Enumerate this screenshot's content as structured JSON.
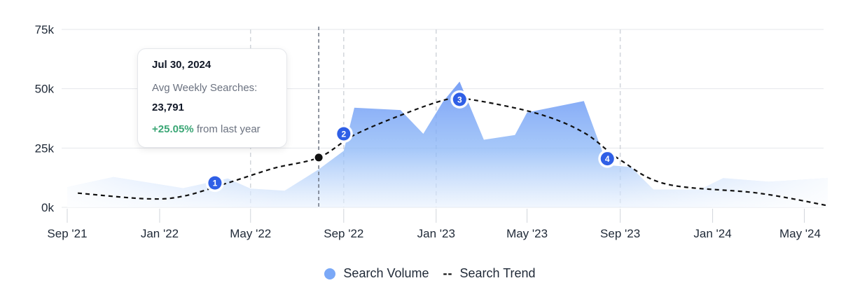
{
  "chart_data": {
    "type": "area",
    "title": "",
    "xlabel": "",
    "ylabel": "",
    "x_ticks": [
      "Sep '21",
      "Jan  '22",
      "May '22",
      "Sep '22",
      "Jan '23",
      "May '23",
      "Sep '23",
      "Jan '24",
      "May '24"
    ],
    "y_ticks": [
      "0k",
      "25k",
      "50k",
      "75k"
    ],
    "ylim": [
      0,
      75000
    ],
    "grid": true,
    "legend_position": "bottom-center",
    "series": [
      {
        "name": "Search Volume",
        "kind": "area",
        "color": "#7aa8f7",
        "points": [
          {
            "x": "2021-09-01",
            "y": 8500
          },
          {
            "x": "2021-11-01",
            "y": 12800
          },
          {
            "x": "2022-02-01",
            "y": 8100
          },
          {
            "x": "2022-04-01",
            "y": 12200
          },
          {
            "x": "2022-05-01",
            "y": 7900
          },
          {
            "x": "2022-06-15",
            "y": 7000
          },
          {
            "x": "2022-07-30",
            "y": 16000
          },
          {
            "x": "2022-09-01",
            "y": 23800
          },
          {
            "x": "2022-09-15",
            "y": 42000
          },
          {
            "x": "2022-11-15",
            "y": 41000
          },
          {
            "x": "2022-12-15",
            "y": 31000
          },
          {
            "x": "2023-01-10",
            "y": 44500
          },
          {
            "x": "2023-02-01",
            "y": 53000
          },
          {
            "x": "2023-03-05",
            "y": 28500
          },
          {
            "x": "2023-04-15",
            "y": 30500
          },
          {
            "x": "2023-05-01",
            "y": 40000
          },
          {
            "x": "2023-07-15",
            "y": 44800
          },
          {
            "x": "2023-08-15",
            "y": 17800
          },
          {
            "x": "2023-09-15",
            "y": 17000
          },
          {
            "x": "2023-10-15",
            "y": 7500
          },
          {
            "x": "2023-12-15",
            "y": 7500
          },
          {
            "x": "2024-01-15",
            "y": 12300
          },
          {
            "x": "2024-03-15",
            "y": 10800
          },
          {
            "x": "2024-06-01",
            "y": 12300
          }
        ]
      },
      {
        "name": "Search Trend",
        "kind": "dashed-line",
        "color": "#111111",
        "points": [
          {
            "x": "2021-09-15",
            "y": 6000
          },
          {
            "x": "2021-12-15",
            "y": 3600
          },
          {
            "x": "2022-02-01",
            "y": 4700
          },
          {
            "x": "2022-04-01",
            "y": 10300
          },
          {
            "x": "2022-06-01",
            "y": 16500
          },
          {
            "x": "2022-07-30",
            "y": 21000
          },
          {
            "x": "2022-09-15",
            "y": 30500
          },
          {
            "x": "2022-11-15",
            "y": 38800
          },
          {
            "x": "2023-01-15",
            "y": 45500
          },
          {
            "x": "2023-02-15",
            "y": 45500
          },
          {
            "x": "2023-05-15",
            "y": 39500
          },
          {
            "x": "2023-07-15",
            "y": 31500
          },
          {
            "x": "2023-09-01",
            "y": 20000
          },
          {
            "x": "2023-11-01",
            "y": 9800
          },
          {
            "x": "2024-03-01",
            "y": 6000
          },
          {
            "x": "2024-06-01",
            "y": 700
          }
        ]
      }
    ],
    "markers": [
      {
        "label": "1",
        "x": "2022-03-15",
        "y": 10300
      },
      {
        "label": "2",
        "x": "2022-09-01",
        "y": 31000
      },
      {
        "label": "3",
        "x": "2023-02-01",
        "y": 45500
      },
      {
        "label": "4",
        "x": "2023-08-15",
        "y": 20500
      }
    ],
    "vertical_guides": [
      "2022-05-01",
      "2022-09-01",
      "2023-01-01",
      "2023-09-01"
    ],
    "cursor": {
      "x": "2022-07-30",
      "y": 21000
    },
    "tooltip": {
      "date": "Jul 30, 2024",
      "label": "Avg Weekly Searches:",
      "value": "23,791",
      "change": "+25.05%",
      "change_suffix": "from last year"
    },
    "legend": [
      {
        "name": "Search Volume",
        "symbol": "dot",
        "color": "#7aa8f7"
      },
      {
        "name": "Search Trend",
        "symbol": "dash",
        "color": "#111111"
      }
    ]
  }
}
